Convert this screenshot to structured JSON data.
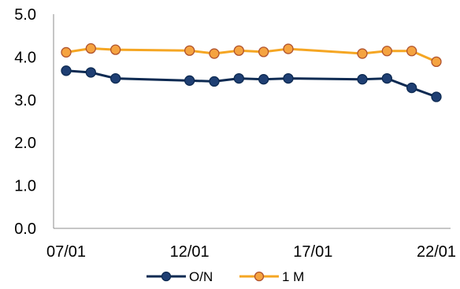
{
  "chart_data": {
    "type": "line",
    "title": "",
    "xlabel": "",
    "ylabel": "",
    "ylim": [
      0,
      5
    ],
    "yticks": [
      "0.0",
      "1.0",
      "2.0",
      "3.0",
      "4.0",
      "5.0"
    ],
    "xlim": [
      7,
      22
    ],
    "xticks": [
      {
        "x": 7,
        "label": "07/01"
      },
      {
        "x": 12,
        "label": "12/01"
      },
      {
        "x": 17,
        "label": "17/01"
      },
      {
        "x": 22,
        "label": "22/01"
      }
    ],
    "grid": false,
    "legend_position": "bottom",
    "series": [
      {
        "name": "O/N",
        "color": "#0d2a52",
        "marker_color": "#1f3f73",
        "x": [
          7,
          8,
          9,
          12,
          13,
          14,
          15,
          16,
          19,
          20,
          21,
          22
        ],
        "values": [
          3.68,
          3.64,
          3.5,
          3.45,
          3.43,
          3.5,
          3.48,
          3.5,
          3.48,
          3.5,
          3.28,
          3.07
        ]
      },
      {
        "name": "1 M",
        "color": "#f5a623",
        "marker_color": "#f5a340",
        "marker_edge": "#b0522d",
        "x": [
          7,
          8,
          9,
          12,
          13,
          14,
          15,
          16,
          19,
          20,
          21,
          22
        ],
        "values": [
          4.11,
          4.2,
          4.17,
          4.15,
          4.08,
          4.15,
          4.12,
          4.19,
          4.08,
          4.14,
          4.14,
          3.89
        ]
      }
    ]
  }
}
